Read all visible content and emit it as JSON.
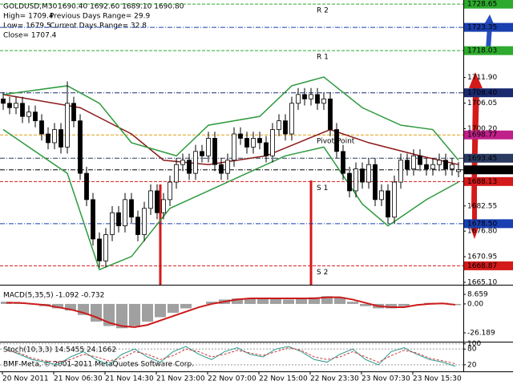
{
  "chart_data": {
    "type": "candlestick",
    "title": "GOLDUSD,M30",
    "ohlc_text": "1690.40 1692.60 1689.10 1690.80",
    "info": [
      "High= 1709.4",
      "Previous Days Range= 29.9",
      "Low= 1679.5",
      "Current Days Range= 32.8",
      "Close= 1707.4"
    ],
    "copyright": "BMF-Meta, © 2001-2011 MetaQuotes Software Corp.",
    "time_labels": [
      "20 Nov 2011",
      "21 Nov 06:30",
      "21 Nov 14:30",
      "21 Nov 23:00",
      "22 Nov 07:00",
      "22 Nov 15:00",
      "22 Nov 23:30",
      "23 Nov 07:30",
      "23 Nov 15:30"
    ],
    "ylim": [
      1664.55,
      1729.6
    ],
    "yticks": [
      {
        "value": 1711.9,
        "label": "1711.90"
      },
      1706.05,
      {
        "value": 1700.2,
        "label": "1700.20"
      },
      1682.55,
      {
        "value": 1676.8,
        "label": "1676.80"
      },
      1670.95,
      {
        "value": 1665.1,
        "label": "1665.10"
      }
    ],
    "opens": [
      1707,
      1706,
      1705,
      1706,
      1703,
      1704,
      1702,
      1699,
      1697,
      1700,
      1696,
      1706,
      1702,
      1690,
      1684,
      1675,
      1670,
      1676,
      1681,
      1678,
      1684,
      1680,
      1676,
      1682,
      1686,
      1681,
      1684,
      1688,
      1692,
      1693,
      1690,
      1695,
      1694,
      1698,
      1692,
      1690,
      1693,
      1699,
      1698,
      1696,
      1698,
      1697,
      1694,
      1700,
      1702,
      1699,
      1706,
      1708,
      1707,
      1708,
      1706,
      1707,
      1700,
      1695,
      1690,
      1686,
      1691,
      1688,
      1692,
      1684,
      1686,
      1680,
      1688,
      1693,
      1691,
      1694,
      1692,
      1691,
      1692,
      1693,
      1691,
      1690.4
    ],
    "highs": [
      1708.5,
      1707.5,
      1707.5,
      1707.5,
      1705.5,
      1705.5,
      1703.5,
      1700.5,
      1701.5,
      1701.5,
      1711,
      1707.5,
      1703.5,
      1691.5,
      1685.5,
      1676.5,
      1677.5,
      1682.5,
      1682.5,
      1685.5,
      1685.5,
      1681.5,
      1683.5,
      1687.5,
      1687.5,
      1685.5,
      1689.5,
      1693.5,
      1694.5,
      1694.5,
      1696.5,
      1696.5,
      1699.5,
      1699.5,
      1693.5,
      1694.5,
      1700.5,
      1700.5,
      1699.5,
      1699.5,
      1699.5,
      1698.5,
      1701.5,
      1703.5,
      1703.5,
      1707.5,
      1709.5,
      1709.5,
      1709.5,
      1709.5,
      1708.5,
      1708.5,
      1701.5,
      1696.5,
      1691.5,
      1692.5,
      1692.5,
      1693.5,
      1693.5,
      1687.5,
      1687.5,
      1689.5,
      1694.5,
      1694.5,
      1695.5,
      1695.5,
      1693.5,
      1693.5,
      1694.5,
      1694.5,
      1693.5,
      1692.6
    ],
    "lows": [
      1704.5,
      1703.5,
      1703.5,
      1701.5,
      1701.5,
      1700.5,
      1697.5,
      1695.5,
      1695.5,
      1694.5,
      1694.5,
      1700.5,
      1688.5,
      1682.5,
      1673.5,
      1668.5,
      1668.5,
      1674.5,
      1676.5,
      1676.5,
      1678.5,
      1674.5,
      1674.5,
      1680.5,
      1679.5,
      1679.5,
      1682.5,
      1686.5,
      1690.5,
      1688.5,
      1688.5,
      1692.5,
      1692.5,
      1690.5,
      1688.5,
      1688.5,
      1691.5,
      1696.5,
      1694.5,
      1694.5,
      1695.5,
      1692.5,
      1692.5,
      1698.5,
      1697.5,
      1697.5,
      1704.5,
      1705.5,
      1705.5,
      1704.5,
      1704.5,
      1698.5,
      1693.5,
      1688.5,
      1684.5,
      1684.5,
      1686.5,
      1686.5,
      1682.5,
      1682.5,
      1678.5,
      1678.5,
      1686.5,
      1689.5,
      1689.5,
      1690.5,
      1689.5,
      1689.5,
      1690.5,
      1689.5,
      1689.5,
      1689.1
    ],
    "closes": [
      1706,
      1705,
      1706,
      1703,
      1704,
      1702,
      1699,
      1697,
      1700,
      1696,
      1706,
      1702,
      1690,
      1684,
      1675,
      1670,
      1676,
      1681,
      1678,
      1684,
      1680,
      1676,
      1682,
      1686,
      1681,
      1684,
      1688,
      1692,
      1693,
      1690,
      1695,
      1694,
      1698,
      1692,
      1690,
      1693,
      1699,
      1698,
      1696,
      1698,
      1697,
      1694,
      1700,
      1702,
      1699,
      1706,
      1708,
      1707,
      1708,
      1706,
      1707,
      1700,
      1695,
      1690,
      1686,
      1691,
      1688,
      1692,
      1684,
      1686,
      1680,
      1688,
      1693,
      1691,
      1694,
      1692,
      1691,
      1692,
      1693,
      1691,
      1692,
      1690.8
    ],
    "indicators": [
      {
        "color": "#8b1a1a",
        "x": [
          0,
          12,
          20,
          25,
          32,
          41,
          46,
          51,
          57,
          65,
          71
        ],
        "values": [
          1708,
          1705,
          1699,
          1693,
          1692,
          1694,
          1697,
          1700,
          1697,
          1694,
          1692
        ]
      },
      {
        "color": "#2e9a3e",
        "x": [
          0,
          10,
          15,
          20,
          27,
          32,
          40,
          45,
          50,
          56,
          62,
          67,
          71
        ],
        "values": [
          1708,
          1710,
          1706,
          1697,
          1694,
          1701,
          1703,
          1710,
          1712,
          1705,
          1701,
          1700,
          1693
        ]
      },
      {
        "color": "#2e9a3e",
        "x": [
          0,
          10,
          15,
          20,
          26,
          32,
          38,
          44,
          50,
          56,
          60,
          66,
          71
        ],
        "values": [
          1700,
          1690,
          1668,
          1671,
          1682,
          1686,
          1690,
          1694,
          1696,
          1683,
          1678,
          1684,
          1688
        ]
      }
    ],
    "levels": [
      {
        "label": "R 2",
        "value": 1728.65,
        "price_label": "1728.65",
        "color": "#2eaa2e"
      },
      {
        "label": "R 1",
        "value": 1718.03,
        "price_label": "1718.03",
        "color": "#2eaa2e"
      },
      {
        "label": "Pivot Point",
        "value": 1698.77,
        "price_label": "1698.77",
        "color": "#e0a010",
        "box_color": "#c0208a"
      },
      {
        "label": "S 1",
        "value": 1688.13,
        "price_label": "1688.13",
        "color": "#d41a1a"
      },
      {
        "label": "S 2",
        "value": 1668.87,
        "price_label": "1668.87",
        "color": "#d41a1a"
      }
    ],
    "price_marks": [
      {
        "value": 1723.35,
        "price_label": "1723.35",
        "color": "#1a3fb0"
      },
      {
        "value": 1708.4,
        "price_label": "1708.40",
        "color": "#1a2a70"
      },
      {
        "value": 1693.45,
        "price_label": "1693.45",
        "color": "#2a3a60"
      },
      {
        "value": 1690.8,
        "price_label": "1690.80",
        "color": "#000000"
      },
      {
        "value": 1678.5,
        "price_label": "1678.50",
        "color": "#1a3fb0"
      }
    ],
    "macd": {
      "label": "MACD(5,35,5) -1.092 -0.732",
      "ylim": [
        -33.45,
        15.92
      ],
      "yticks": [
        8.659,
        {
          "value": 0,
          "label": "0.00"
        },
        -26.189
      ],
      "hist_color": "#a0a0a0",
      "signal_color": "#cc1a1a",
      "hist": [
        2,
        1,
        0,
        -2,
        -4,
        -6,
        -10,
        -16,
        -20,
        -22,
        -20,
        -16,
        -12,
        -8,
        -4,
        0,
        2,
        4,
        5,
        5,
        5,
        5,
        4,
        5,
        6,
        7,
        6,
        2,
        -2,
        -4,
        -4,
        -2,
        0,
        1,
        1,
        -1.092
      ],
      "signal": [
        1,
        1,
        0,
        -1,
        -3,
        -5,
        -8,
        -12,
        -17,
        -20,
        -21,
        -19,
        -15,
        -11,
        -7,
        -3,
        0,
        2,
        4,
        5,
        5,
        5,
        5,
        5,
        5,
        6,
        6,
        4,
        1,
        -2,
        -3,
        -3,
        -1,
        0,
        0.5,
        -0.732
      ]
    },
    "stoch": {
      "label": "Stoch(10,3,3) 14.5455 24.1662",
      "ylim": [
        -5,
        105
      ],
      "yticks": [
        100,
        80,
        20
      ],
      "main_color": "#2e9a8e",
      "signal_color": "#cc3a3a",
      "main": [
        80,
        60,
        40,
        30,
        20,
        50,
        70,
        40,
        20,
        60,
        80,
        50,
        30,
        70,
        90,
        60,
        40,
        70,
        85,
        60,
        50,
        80,
        90,
        70,
        40,
        30,
        60,
        80,
        40,
        20,
        70,
        85,
        60,
        40,
        30,
        14.5455
      ],
      "signal": [
        75,
        65,
        45,
        35,
        30,
        40,
        60,
        50,
        35,
        45,
        70,
        60,
        40,
        55,
        80,
        70,
        50,
        60,
        75,
        65,
        55,
        70,
        85,
        75,
        50,
        40,
        50,
        70,
        50,
        30,
        55,
        75,
        65,
        45,
        35,
        24.1662
      ]
    }
  }
}
